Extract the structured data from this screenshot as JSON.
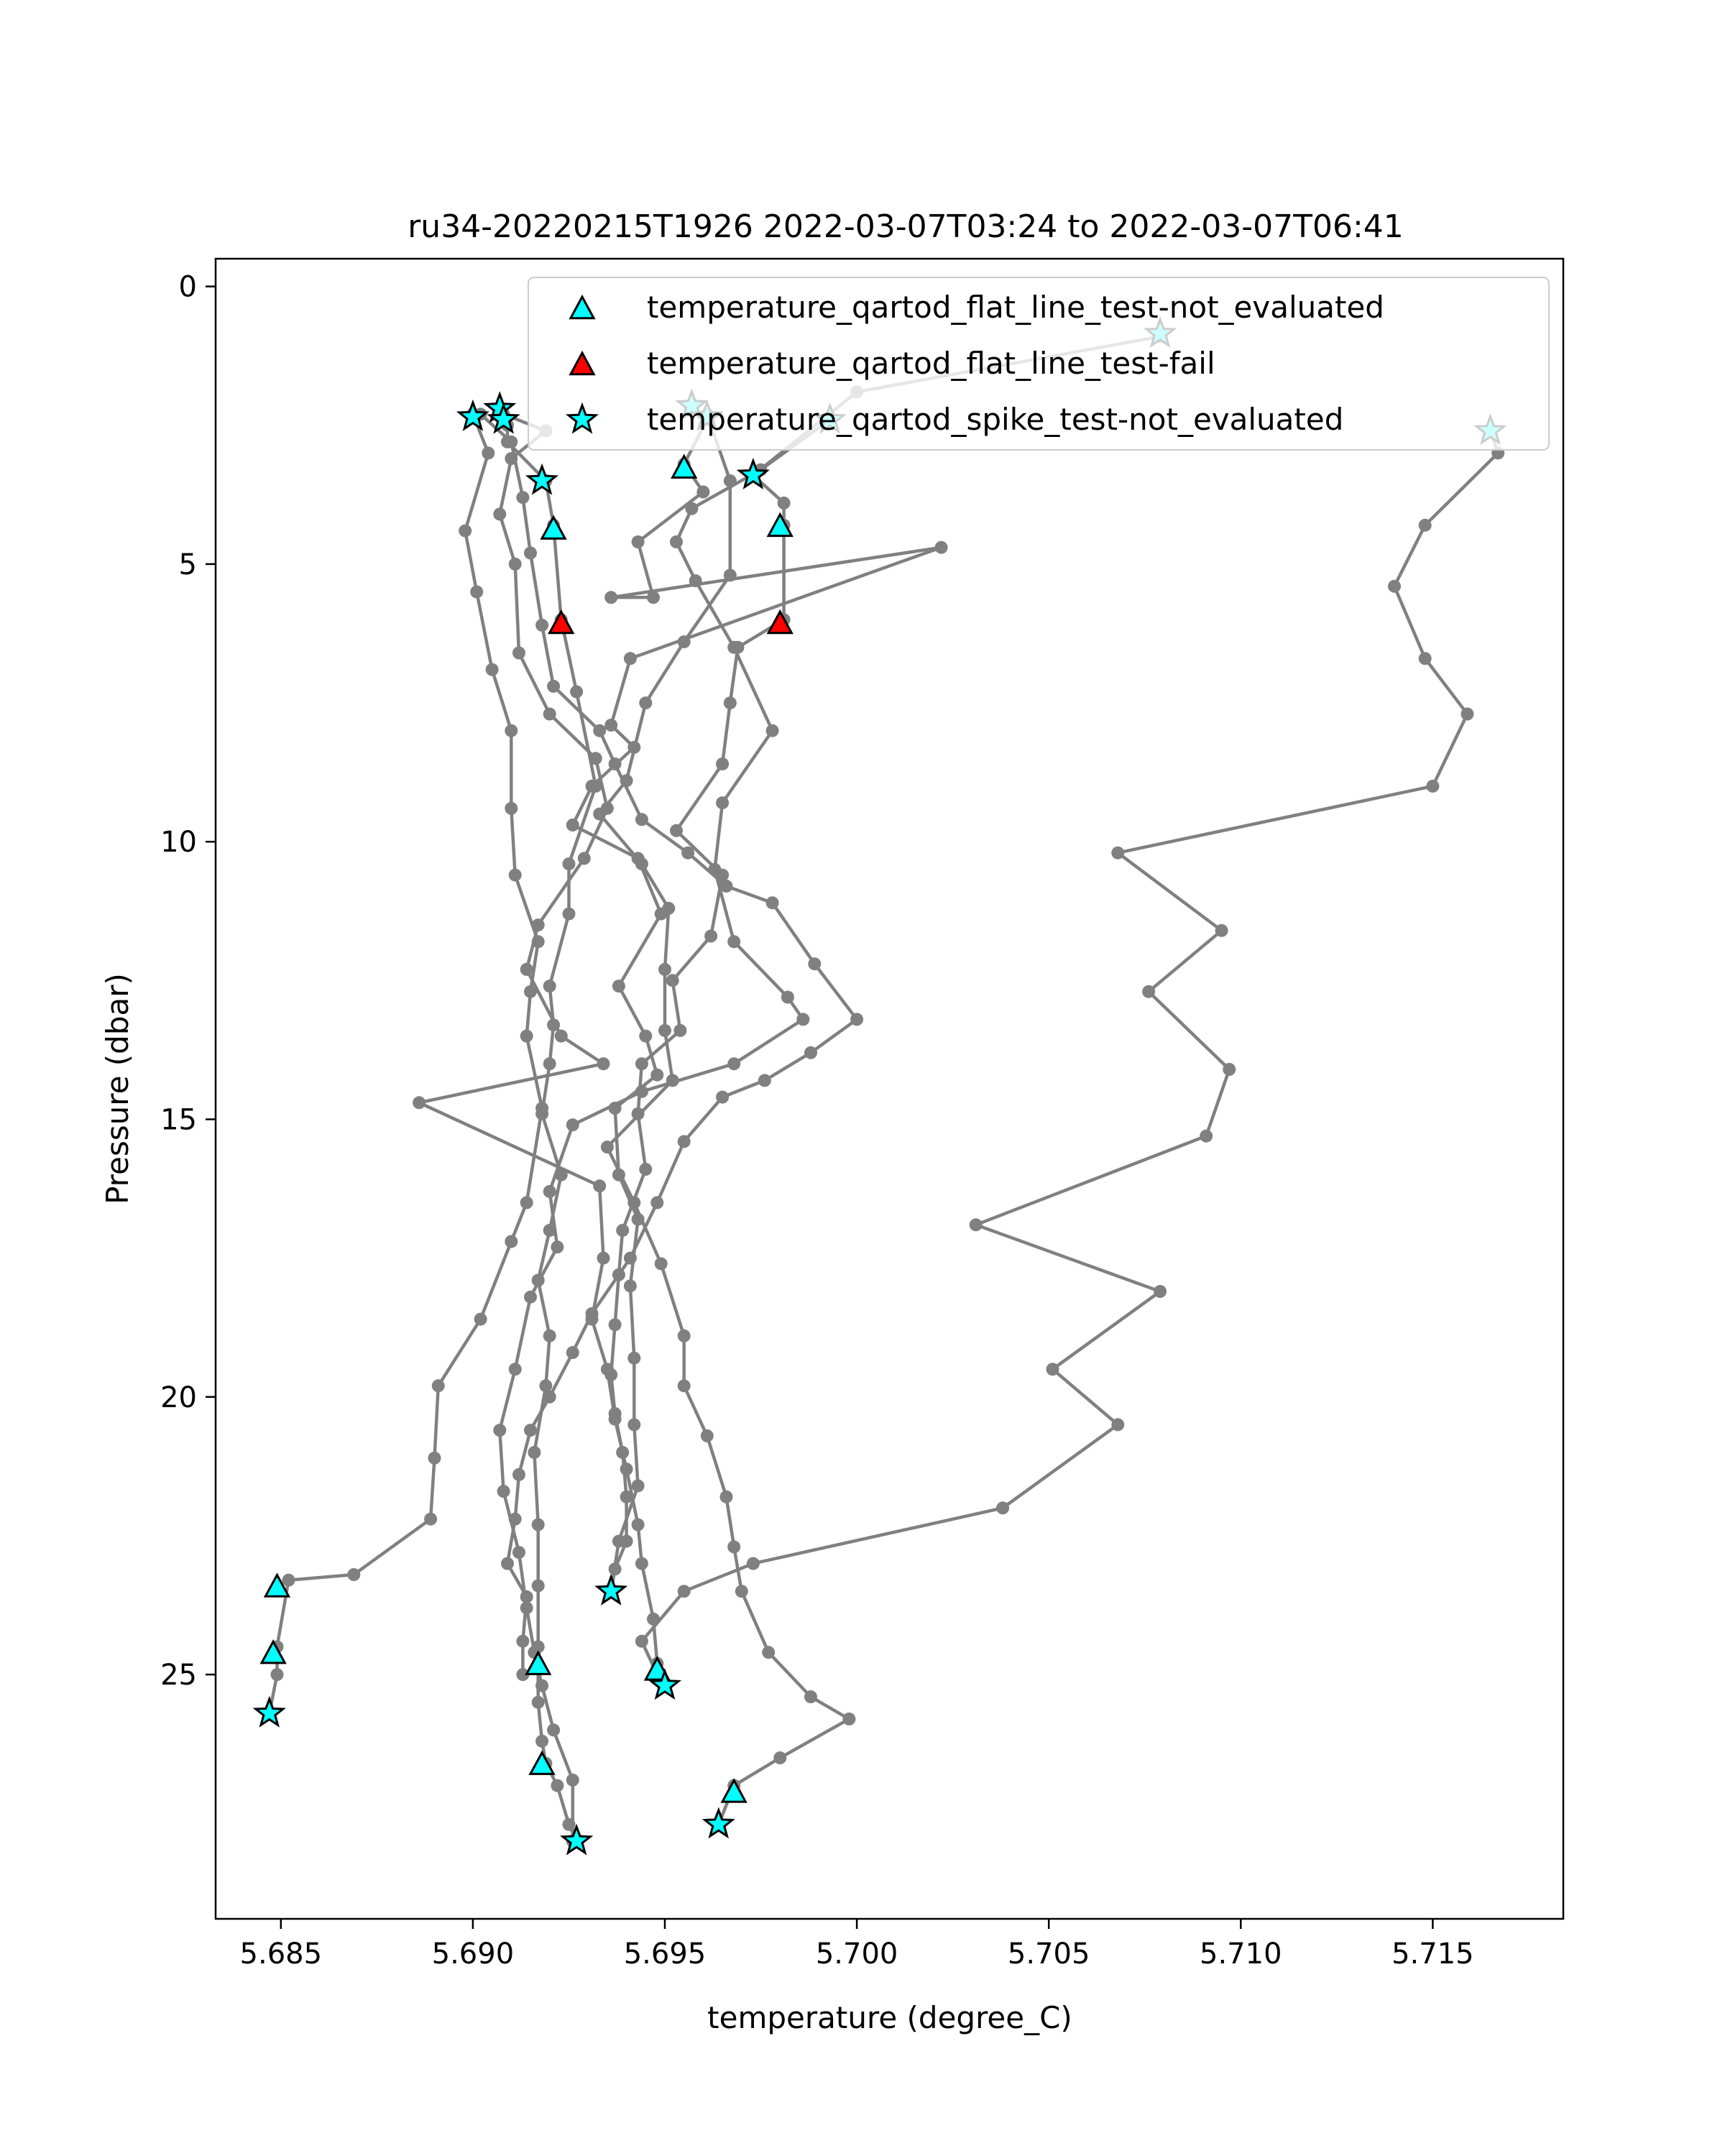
{
  "chart_data": {
    "type": "scatter",
    "title": "ru34-20220215T1926 2022-03-07T03:24 to 2022-03-07T06:41",
    "xlabel": "temperature (degree_C)",
    "ylabel": "Pressure (dbar)",
    "xlim": [
      5.6833,
      5.7184
    ],
    "ylim": [
      29.4,
      -0.5
    ],
    "y_inverted": true,
    "xticks": [
      "5.685",
      "5.690",
      "5.695",
      "5.700",
      "5.705",
      "5.710",
      "5.715"
    ],
    "yticks": [
      "0",
      "5",
      "10",
      "15",
      "20",
      "25"
    ],
    "grid": false,
    "legend_position": "top-right",
    "colors": {
      "profile_line": "#808080",
      "not_evaluated": "#00ffff",
      "fail": "#ff0000",
      "marker_edge": "#000000"
    },
    "series": [
      {
        "type": "line",
        "style": "profile",
        "points": [
          [
            5.7165,
            2.6
          ],
          [
            5.7167,
            3.0
          ],
          [
            5.7148,
            4.3
          ],
          [
            5.714,
            5.4
          ],
          [
            5.7148,
            6.7
          ],
          [
            5.7159,
            7.7
          ],
          [
            5.715,
            9.0
          ],
          [
            5.7068,
            10.2
          ],
          [
            5.7095,
            11.6
          ],
          [
            5.7076,
            12.7
          ],
          [
            5.7097,
            14.1
          ],
          [
            5.7091,
            15.3
          ],
          [
            5.7031,
            16.9
          ],
          [
            5.7079,
            18.1
          ],
          [
            5.7051,
            19.5
          ],
          [
            5.7068,
            20.5
          ],
          [
            5.7038,
            22.0
          ],
          [
            5.6973,
            23.0
          ],
          [
            5.6955,
            23.5
          ],
          [
            5.6944,
            24.4
          ],
          [
            5.6948,
            25.0
          ],
          [
            5.695,
            25.2
          ]
        ]
      },
      {
        "type": "line",
        "style": "profile",
        "points": [
          [
            5.7079,
            0.9
          ],
          [
            5.7,
            1.9
          ],
          [
            5.6973,
            3.4
          ],
          [
            5.6981,
            3.9
          ],
          [
            5.6981,
            4.3
          ],
          [
            5.6981,
            6.0
          ],
          [
            5.6969,
            6.5
          ],
          [
            5.6967,
            7.5
          ],
          [
            5.6965,
            8.6
          ],
          [
            5.6953,
            9.8
          ],
          [
            5.6965,
            10.6
          ],
          [
            5.6962,
            11.7
          ],
          [
            5.6952,
            12.5
          ],
          [
            5.6954,
            13.4
          ],
          [
            5.6944,
            14.0
          ],
          [
            5.6943,
            14.9
          ],
          [
            5.6945,
            15.9
          ],
          [
            5.6939,
            17.0
          ],
          [
            5.6938,
            17.8
          ],
          [
            5.6937,
            18.7
          ],
          [
            5.6936,
            19.6
          ],
          [
            5.6937,
            20.3
          ],
          [
            5.6939,
            21.0
          ],
          [
            5.694,
            21.8
          ],
          [
            5.694,
            22.6
          ],
          [
            5.6937,
            23.1
          ],
          [
            5.6936,
            23.5
          ]
        ]
      },
      {
        "type": "line",
        "style": "profile",
        "points": [
          [
            5.6957,
            2.2
          ],
          [
            5.6961,
            2.4
          ],
          [
            5.6955,
            3.2
          ],
          [
            5.696,
            3.7
          ],
          [
            5.6943,
            4.6
          ],
          [
            5.6947,
            5.6
          ],
          [
            5.6936,
            5.6
          ],
          [
            5.7022,
            4.7
          ],
          [
            5.6941,
            6.7
          ],
          [
            5.6936,
            7.9
          ],
          [
            5.6942,
            8.3
          ],
          [
            5.6931,
            9.0
          ],
          [
            5.6926,
            9.7
          ],
          [
            5.6943,
            10.3
          ],
          [
            5.6949,
            11.3
          ],
          [
            5.6938,
            12.6
          ],
          [
            5.6945,
            13.5
          ],
          [
            5.6948,
            14.2
          ],
          [
            5.6937,
            14.8
          ],
          [
            5.6938,
            16.0
          ],
          [
            5.6943,
            16.8
          ],
          [
            5.6941,
            18.0
          ],
          [
            5.6942,
            19.3
          ],
          [
            5.6942,
            20.5
          ],
          [
            5.6943,
            21.6
          ],
          [
            5.6938,
            22.6
          ],
          [
            5.6936,
            23.5
          ]
        ]
      },
      {
        "type": "line",
        "style": "profile",
        "points": [
          [
            5.6907,
            2.2
          ],
          [
            5.6909,
            2.5
          ],
          [
            5.6909,
            2.8
          ],
          [
            5.6919,
            3.5
          ],
          [
            5.6921,
            4.3
          ],
          [
            5.6923,
            6.0
          ],
          [
            5.6927,
            7.3
          ],
          [
            5.6932,
            9.0
          ],
          [
            5.6925,
            10.4
          ],
          [
            5.6925,
            11.3
          ],
          [
            5.692,
            12.6
          ],
          [
            5.6921,
            13.3
          ],
          [
            5.692,
            14.0
          ],
          [
            5.6918,
            14.9
          ],
          [
            5.6923,
            16.0
          ],
          [
            5.692,
            17.0
          ],
          [
            5.6917,
            17.9
          ],
          [
            5.692,
            18.9
          ],
          [
            5.6919,
            19.8
          ],
          [
            5.6916,
            21.0
          ],
          [
            5.6917,
            22.3
          ],
          [
            5.6917,
            23.4
          ],
          [
            5.6917,
            24.5
          ],
          [
            5.6917,
            25.5
          ],
          [
            5.6918,
            26.2
          ],
          [
            5.6919,
            26.6
          ],
          [
            5.6922,
            27.0
          ],
          [
            5.6925,
            27.7
          ],
          [
            5.6927,
            28.0
          ]
        ]
      },
      {
        "type": "line",
        "style": "profile",
        "points": [
          [
            5.69,
            2.3
          ],
          [
            5.6904,
            3.0
          ],
          [
            5.6898,
            4.4
          ],
          [
            5.6901,
            5.5
          ],
          [
            5.6905,
            6.9
          ],
          [
            5.691,
            8.0
          ],
          [
            5.691,
            9.4
          ],
          [
            5.6911,
            10.6
          ],
          [
            5.6917,
            11.8
          ],
          [
            5.6915,
            12.7
          ],
          [
            5.6914,
            13.5
          ],
          [
            5.6918,
            14.8
          ],
          [
            5.6914,
            16.5
          ],
          [
            5.691,
            17.2
          ],
          [
            5.6902,
            18.6
          ],
          [
            5.6891,
            19.8
          ],
          [
            5.689,
            21.1
          ],
          [
            5.6889,
            22.2
          ],
          [
            5.6869,
            23.2
          ],
          [
            5.6852,
            23.3
          ],
          [
            5.6849,
            24.5
          ],
          [
            5.6849,
            25.0
          ],
          [
            5.6847,
            25.7
          ]
        ]
      },
      {
        "type": "line",
        "style": "profile",
        "points": [
          [
            5.6908,
            2.3
          ],
          [
            5.6919,
            2.6
          ],
          [
            5.691,
            3.1
          ],
          [
            5.6907,
            4.1
          ],
          [
            5.6911,
            5.0
          ],
          [
            5.6912,
            6.6
          ],
          [
            5.692,
            7.7
          ],
          [
            5.6932,
            8.5
          ],
          [
            5.6935,
            9.4
          ],
          [
            5.6929,
            10.3
          ],
          [
            5.6917,
            11.5
          ],
          [
            5.6914,
            12.3
          ],
          [
            5.6923,
            13.5
          ],
          [
            5.6934,
            14.0
          ],
          [
            5.6886,
            14.7
          ],
          [
            5.6933,
            16.2
          ],
          [
            5.6934,
            17.5
          ],
          [
            5.6931,
            18.6
          ],
          [
            5.6935,
            19.5
          ],
          [
            5.6937,
            20.4
          ],
          [
            5.694,
            21.3
          ],
          [
            5.6943,
            22.3
          ],
          [
            5.6944,
            23.0
          ],
          [
            5.6947,
            24.0
          ],
          [
            5.6948,
            24.8
          ]
        ]
      },
      {
        "type": "line",
        "style": "profile",
        "points": [
          [
            5.6993,
            2.4
          ],
          [
            5.6975,
            3.3
          ],
          [
            5.6957,
            4.0
          ],
          [
            5.6953,
            4.6
          ],
          [
            5.6958,
            5.3
          ],
          [
            5.6968,
            6.5
          ],
          [
            5.6978,
            8.0
          ],
          [
            5.6965,
            9.3
          ],
          [
            5.6963,
            10.5
          ],
          [
            5.6968,
            11.8
          ],
          [
            5.6982,
            12.8
          ],
          [
            5.6986,
            13.2
          ],
          [
            5.6968,
            14.0
          ],
          [
            5.6944,
            14.5
          ],
          [
            5.6926,
            15.1
          ],
          [
            5.692,
            16.3
          ],
          [
            5.6922,
            17.3
          ],
          [
            5.6915,
            18.2
          ],
          [
            5.6911,
            19.5
          ],
          [
            5.6907,
            20.6
          ],
          [
            5.6908,
            21.7
          ],
          [
            5.6912,
            22.8
          ],
          [
            5.6914,
            23.8
          ],
          [
            5.6916,
            24.6
          ],
          [
            5.6918,
            25.2
          ],
          [
            5.6921,
            26.0
          ],
          [
            5.6926,
            26.9
          ],
          [
            5.6926,
            28.0
          ]
        ]
      },
      {
        "type": "line",
        "style": "profile",
        "points": [
          [
            5.6961,
            2.3
          ],
          [
            5.6967,
            3.5
          ],
          [
            5.6967,
            5.2
          ],
          [
            5.6955,
            6.4
          ],
          [
            5.6945,
            7.5
          ],
          [
            5.694,
            8.9
          ],
          [
            5.6933,
            9.5
          ],
          [
            5.6944,
            10.4
          ],
          [
            5.6951,
            11.2
          ],
          [
            5.695,
            12.3
          ],
          [
            5.695,
            13.4
          ],
          [
            5.6952,
            14.3
          ],
          [
            5.6935,
            15.5
          ],
          [
            5.6942,
            16.5
          ],
          [
            5.6949,
            17.6
          ],
          [
            5.6955,
            18.9
          ],
          [
            5.6955,
            19.8
          ],
          [
            5.6961,
            20.7
          ],
          [
            5.6966,
            21.8
          ],
          [
            5.6968,
            22.7
          ],
          [
            5.697,
            23.5
          ],
          [
            5.6977,
            24.6
          ],
          [
            5.6988,
            25.4
          ],
          [
            5.6998,
            25.8
          ],
          [
            5.698,
            26.5
          ],
          [
            5.6968,
            27.0
          ],
          [
            5.6964,
            27.7
          ]
        ]
      },
      {
        "type": "line",
        "style": "profile",
        "points": [
          [
            5.6902,
            2.3
          ],
          [
            5.691,
            2.8
          ],
          [
            5.6913,
            3.8
          ],
          [
            5.6915,
            4.8
          ],
          [
            5.6918,
            6.1
          ],
          [
            5.6921,
            7.2
          ],
          [
            5.6933,
            8.0
          ],
          [
            5.6937,
            8.6
          ],
          [
            5.6944,
            9.6
          ],
          [
            5.6956,
            10.2
          ],
          [
            5.6966,
            10.8
          ],
          [
            5.6978,
            11.1
          ],
          [
            5.6989,
            12.2
          ],
          [
            5.7,
            13.2
          ],
          [
            5.6988,
            13.8
          ],
          [
            5.6976,
            14.3
          ],
          [
            5.6965,
            14.6
          ],
          [
            5.6955,
            15.4
          ],
          [
            5.6948,
            16.5
          ],
          [
            5.6941,
            17.5
          ],
          [
            5.6931,
            18.5
          ],
          [
            5.6926,
            19.2
          ],
          [
            5.692,
            20.0
          ],
          [
            5.6915,
            20.6
          ],
          [
            5.6912,
            21.4
          ],
          [
            5.6911,
            22.2
          ],
          [
            5.6909,
            23.0
          ],
          [
            5.6914,
            23.6
          ],
          [
            5.6913,
            24.4
          ],
          [
            5.6913,
            25.0
          ]
        ]
      },
      {
        "type": "scatter",
        "name": "temperature_qartod_flat_line_test-not_evaluated",
        "marker": "triangle",
        "color": "#00ffff",
        "points": [
          [
            5.6955,
            3.25
          ],
          [
            5.698,
            4.3
          ],
          [
            5.6921,
            4.35
          ],
          [
            5.6849,
            23.4
          ],
          [
            5.6848,
            24.6
          ],
          [
            5.6917,
            24.8
          ],
          [
            5.6948,
            24.9
          ],
          [
            5.6918,
            26.6
          ],
          [
            5.6968,
            27.1
          ]
        ]
      },
      {
        "type": "scatter",
        "name": "temperature_qartod_flat_line_test-fail",
        "marker": "triangle",
        "color": "#ff0000",
        "points": [
          [
            5.6923,
            6.05
          ],
          [
            5.698,
            6.05
          ]
        ]
      },
      {
        "type": "scatter",
        "name": "temperature_qartod_spike_test-not_evaluated",
        "marker": "star",
        "color": "#00ffff",
        "points": [
          [
            5.7079,
            0.85
          ],
          [
            5.6907,
            2.2
          ],
          [
            5.6957,
            2.15
          ],
          [
            5.69,
            2.35
          ],
          [
            5.6908,
            2.4
          ],
          [
            5.6961,
            2.35
          ],
          [
            5.6993,
            2.4
          ],
          [
            5.7165,
            2.6
          ],
          [
            5.6973,
            3.4
          ],
          [
            5.6918,
            3.5
          ],
          [
            5.6936,
            23.5
          ],
          [
            5.695,
            25.2
          ],
          [
            5.6847,
            25.7
          ],
          [
            5.6964,
            27.7
          ],
          [
            5.6927,
            28.0
          ]
        ]
      }
    ]
  }
}
